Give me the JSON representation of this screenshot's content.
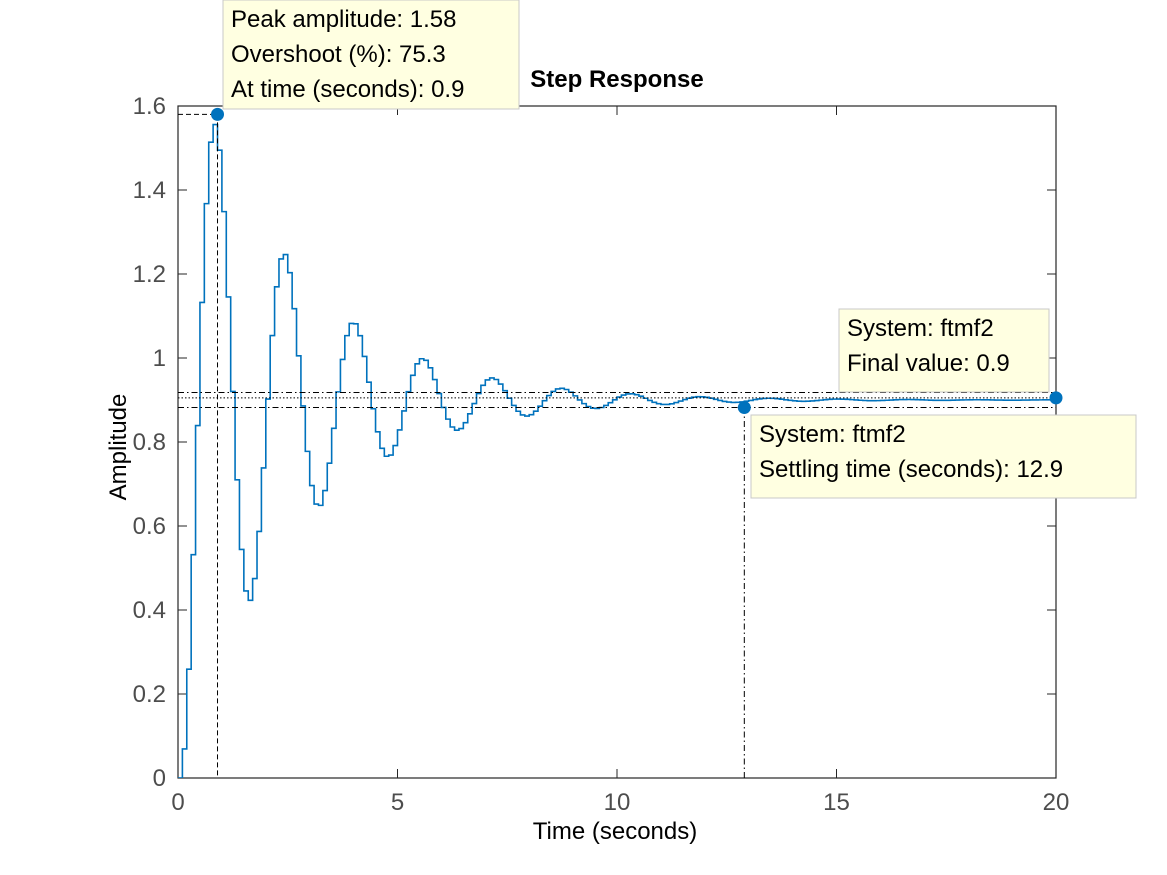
{
  "chart_data": {
    "type": "line",
    "title": "Step Response",
    "xlabel": "Time (seconds)",
    "ylabel": "Amplitude",
    "xlim": [
      0,
      20
    ],
    "ylim": [
      0,
      1.6
    ],
    "xticks": [
      0,
      5,
      10,
      15,
      20
    ],
    "xtick_labels": [
      "0",
      "5",
      "10",
      "15",
      "20"
    ],
    "yticks": [
      0,
      0.2,
      0.4,
      0.6,
      0.8,
      1,
      1.2,
      1.4,
      1.6
    ],
    "ytick_labels": [
      "0",
      "0.2",
      "0.4",
      "0.6",
      "0.8",
      "1",
      "1.2",
      "1.4",
      "1.6"
    ],
    "grid": false,
    "line_color": "#0072BD",
    "annotation_bg": "#FFFFE1",
    "series": [
      {
        "style": "step",
        "sample_time": 0.1,
        "end_time": 20,
        "final_value": 0.9,
        "peak_value": 1.58,
        "peak_time": 0.9,
        "damping_ratio": 0.1,
        "natural_frequency_rad_s": 4.0
      }
    ],
    "settling_band": [
      0.882,
      0.918
    ],
    "datatips": [
      {
        "name": "peak",
        "x": 0.9,
        "y": 1.58,
        "lines": [
          "Peak amplitude: 1.58",
          "Overshoot (%): 75.3",
          "At time (seconds): 0.9"
        ]
      },
      {
        "name": "final",
        "x": 20,
        "y": 0.905,
        "lines": [
          "System: ftmf2",
          "Final value: 0.9"
        ]
      },
      {
        "name": "settling",
        "x": 12.9,
        "y": 0.882,
        "lines": [
          "System: ftmf2",
          "Settling time (seconds): 12.9"
        ]
      }
    ]
  }
}
